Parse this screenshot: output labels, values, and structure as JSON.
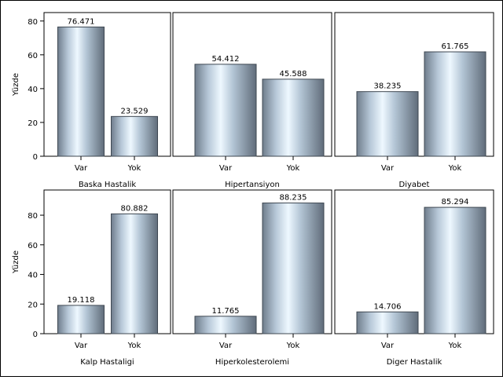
{
  "chart_data": {
    "type": "bar",
    "layout": "2x3 panel grid",
    "ylabel": "Yüzde",
    "categories": [
      "Var",
      "Yok"
    ],
    "panels": [
      {
        "title": "Baska Hastalik",
        "values": [
          76.471,
          23.529
        ],
        "value_labels": [
          "76.471",
          "23.529"
        ],
        "ylim": [
          0,
          85
        ],
        "yticks": [
          0,
          20,
          40,
          60,
          80
        ]
      },
      {
        "title": "Hipertansiyon",
        "values": [
          54.412,
          45.588
        ],
        "value_labels": [
          "54.412",
          "45.588"
        ],
        "ylim": [
          0,
          85
        ],
        "yticks": [
          0,
          20,
          40,
          60,
          80
        ]
      },
      {
        "title": "Diyabet",
        "values": [
          38.235,
          61.765
        ],
        "value_labels": [
          "38.235",
          "61.765"
        ],
        "ylim": [
          0,
          85
        ],
        "yticks": [
          0,
          20,
          40,
          60,
          80
        ]
      },
      {
        "title": "Kalp Hastaligi",
        "values": [
          19.118,
          80.882
        ],
        "value_labels": [
          "19.118",
          "80.882"
        ],
        "ylim": [
          0,
          97
        ],
        "yticks": [
          0,
          20,
          40,
          60,
          80
        ]
      },
      {
        "title": "Hiperkolesterolemi",
        "values": [
          11.765,
          88.235
        ],
        "value_labels": [
          "11.765",
          "88.235"
        ],
        "ylim": [
          0,
          97
        ],
        "yticks": [
          0,
          20,
          40,
          60,
          80
        ]
      },
      {
        "title": "Diger Hastalik",
        "values": [
          14.706,
          85.294
        ],
        "value_labels": [
          "14.706",
          "85.294"
        ],
        "ylim": [
          0,
          97
        ],
        "yticks": [
          0,
          20,
          40,
          60,
          80
        ]
      }
    ],
    "grid": false,
    "bar_colors": {
      "edge": "#5d6a78",
      "light": "#eaf6ff",
      "mid": "#a9bccd",
      "dark": "#677483"
    }
  }
}
